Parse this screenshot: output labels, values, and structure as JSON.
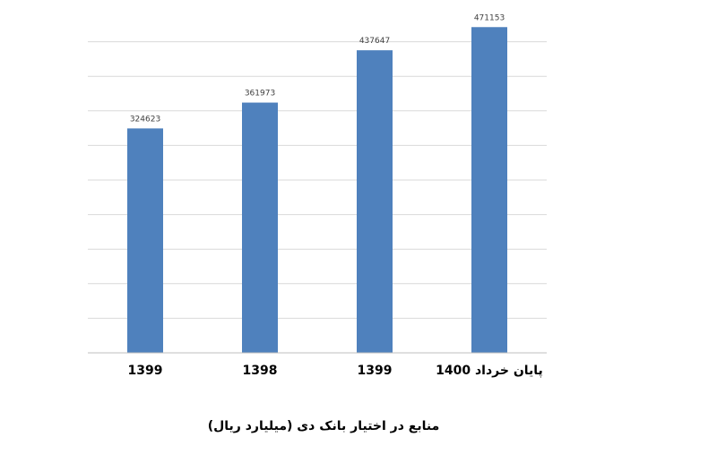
{
  "chart_data": {
    "type": "bar",
    "categories": [
      "1399",
      "1398",
      "1399",
      "پایان خرداد 1400"
    ],
    "values": [
      324623,
      361973,
      437647,
      471153
    ],
    "title": "منابع در اختیار بانک دی (میلیارد ریال)",
    "xlabel": "",
    "ylabel": "",
    "ylim": [
      0,
      500000
    ],
    "grid": true,
    "bar_color": "#4f81bd",
    "grid_color": "#d9d9d9",
    "axis_color": "#bfbfbf"
  }
}
